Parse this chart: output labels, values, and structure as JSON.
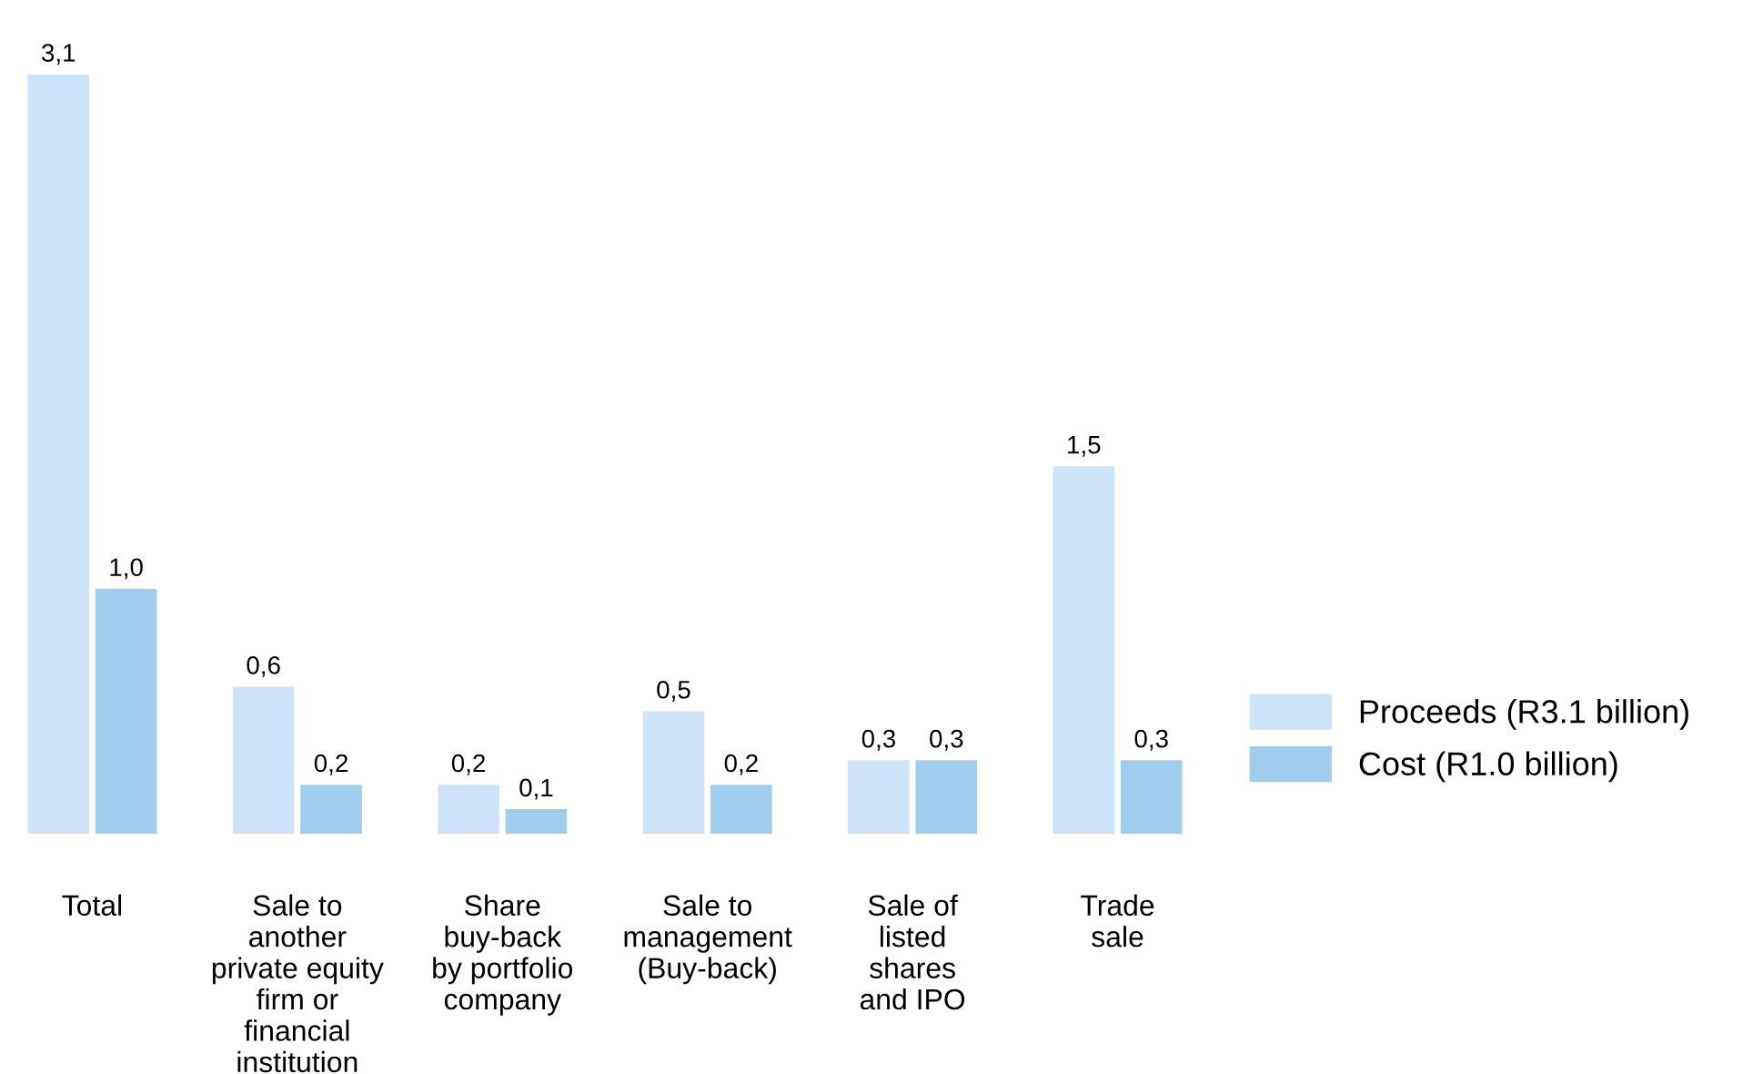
{
  "chart_data": {
    "type": "bar",
    "categories": [
      "Total",
      "Sale to\nanother\nprivate equity\nfirm or\nfinancial\ninstitution",
      "Share\nbuy-back\nby portfolio\ncompany",
      "Sale to\nmanagement\n(Buy-back)",
      "Sale of\nlisted\nshares\nand IPO",
      "Trade\nsale"
    ],
    "series": [
      {
        "name": "Proceeds (R3.1 billion)",
        "color": "#cfe3f6",
        "values": [
          3.1,
          0.6,
          0.2,
          0.5,
          0.3,
          1.5
        ],
        "value_labels": [
          "3,1",
          "0,6",
          "0,2",
          "0,5",
          "0,3",
          "1,5"
        ]
      },
      {
        "name": "Cost (R1.0 billion)",
        "color": "#9fcdee",
        "values": [
          1.0,
          0.2,
          0.1,
          0.2,
          0.3,
          0.3
        ],
        "value_labels": [
          "1,0",
          "0,2",
          "0,1",
          "0,2",
          "0,3",
          "0,3"
        ]
      }
    ],
    "legend": "right",
    "grid": false
  }
}
